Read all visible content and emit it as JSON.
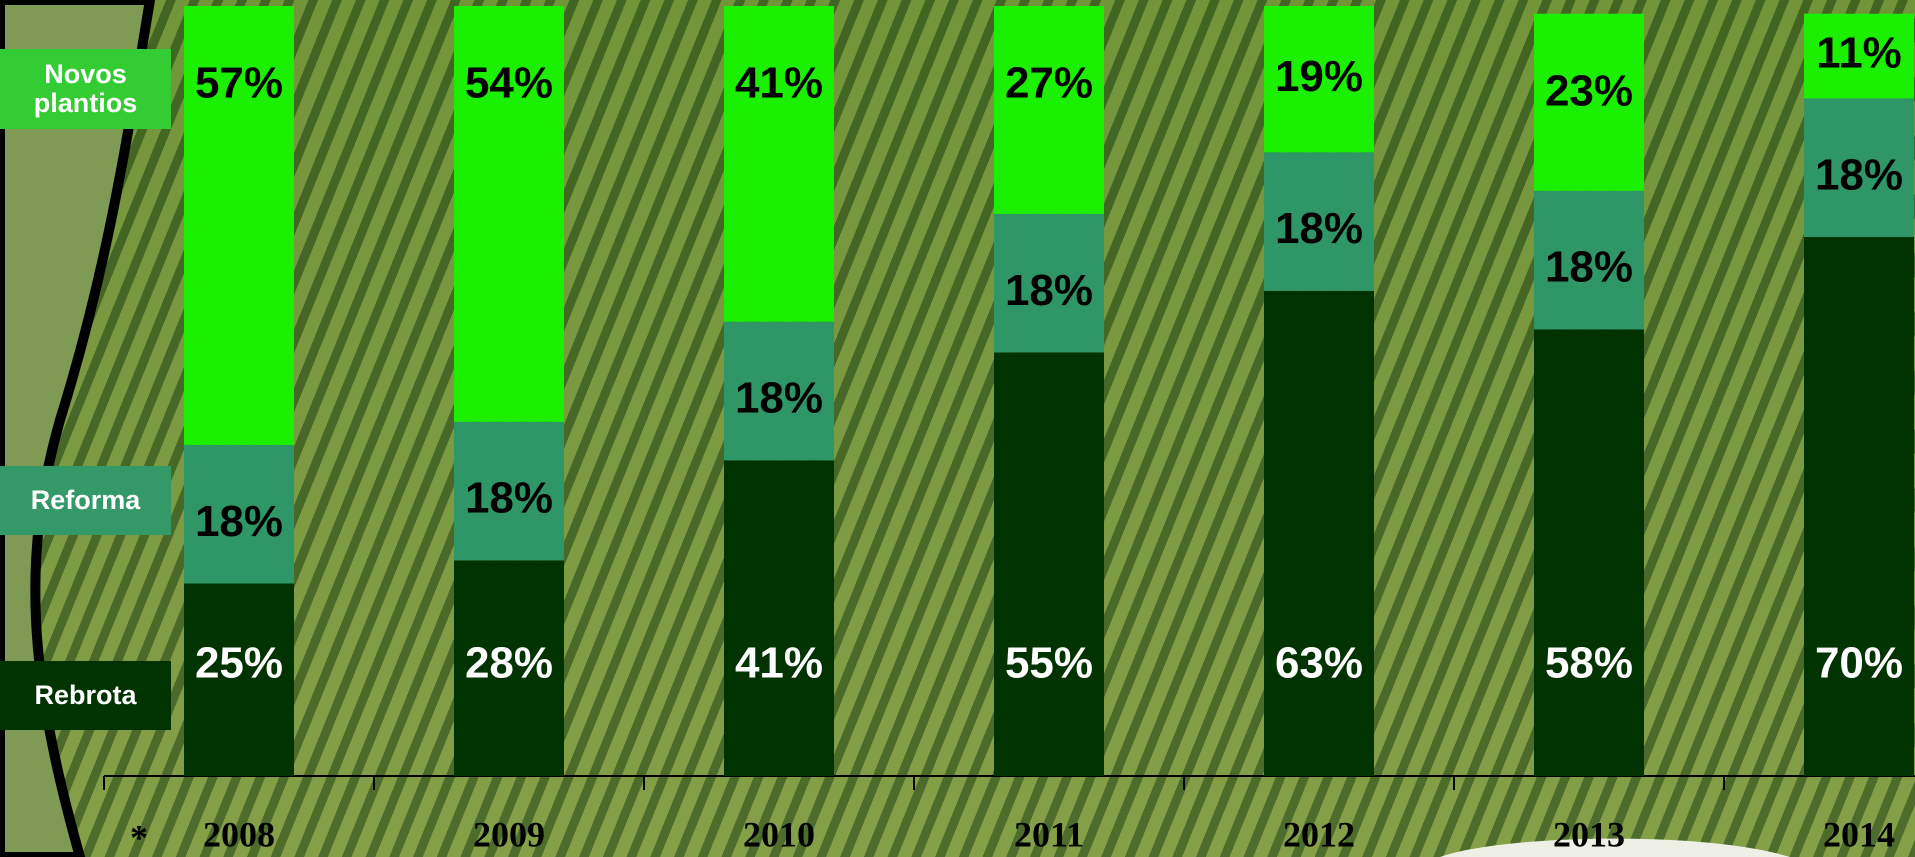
{
  "chart_data": {
    "type": "stacked_bar",
    "categories": [
      "2008",
      "2009",
      "2010",
      "2011",
      "2012",
      "2013",
      "2014"
    ],
    "note": "*",
    "series": [
      {
        "name": "Rebrota",
        "color": "#003300",
        "values": [
          25,
          28,
          41,
          55,
          63,
          58,
          70
        ],
        "value_labels": [
          "25%",
          "28%",
          "41%",
          "55%",
          "63%",
          "58%",
          "70%"
        ]
      },
      {
        "name": "Reforma",
        "color": "#2f9667",
        "values": [
          18,
          18,
          18,
          18,
          18,
          18,
          18
        ],
        "value_labels": [
          "18%",
          "18%",
          "18%",
          "18%",
          "18%",
          "18%",
          "18%"
        ]
      },
      {
        "name": "Novos plantios",
        "color": "#1af000",
        "values": [
          57,
          54,
          41,
          27,
          19,
          23,
          11
        ],
        "value_labels": [
          "57%",
          "54%",
          "41%",
          "27%",
          "19%",
          "23%",
          "11%"
        ]
      }
    ],
    "ylim": [
      0,
      100
    ]
  }
}
